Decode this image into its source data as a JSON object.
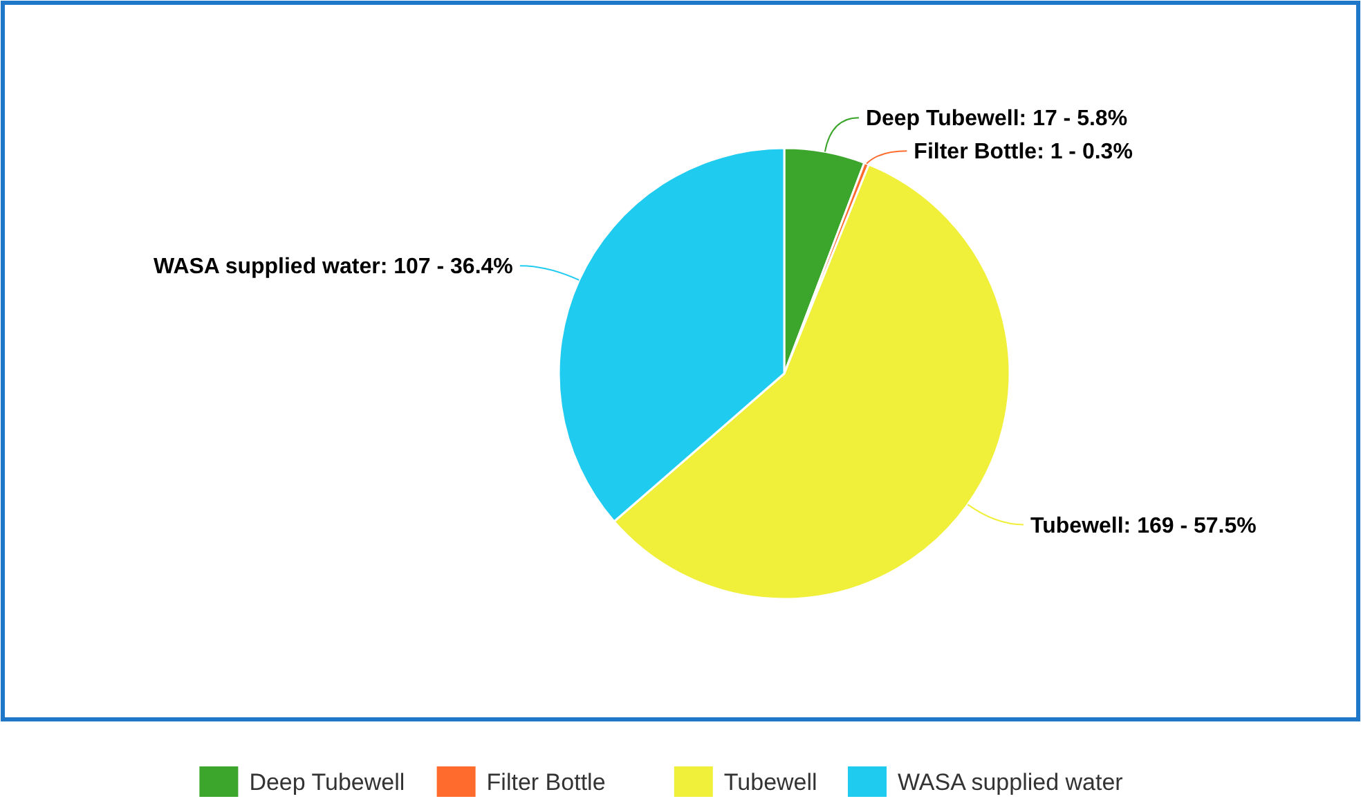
{
  "chart_data": {
    "type": "pie",
    "categories": [
      "Deep Tubewell",
      "Filter Bottle",
      "Tubewell",
      "WASA supplied water"
    ],
    "values": [
      17,
      1,
      169,
      107
    ],
    "colors": [
      "#3ca52b",
      "#ff6b2c",
      "#f0f03a",
      "#1fcbef"
    ],
    "value_labels": [
      ": 17 - 5.8%",
      ": 1 - 0.3%",
      ": 169 - 57.5%",
      ": 107 - 36.4%"
    ],
    "legend": "bottom"
  }
}
